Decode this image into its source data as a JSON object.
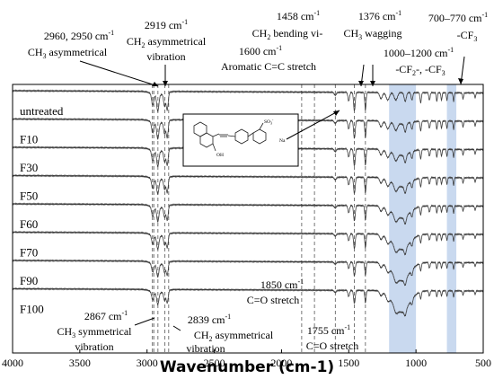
{
  "chart_data": {
    "type": "line",
    "xlabel": "Wavenumber (cm-1)",
    "ylabel": "",
    "xlim": [
      4000,
      500
    ],
    "x_reversed": true,
    "xticks": [
      4000,
      3500,
      3000,
      2500,
      2000,
      1500,
      1000,
      500
    ],
    "grid": false,
    "legend": "none",
    "series": [
      {
        "name": "untreated"
      },
      {
        "name": "F10"
      },
      {
        "name": "F30"
      },
      {
        "name": "F50"
      },
      {
        "name": "F60"
      },
      {
        "name": "F70"
      },
      {
        "name": "F90"
      },
      {
        "name": "F100"
      }
    ],
    "marked_bands": [
      {
        "x": 2960
      },
      {
        "x": 2950
      },
      {
        "x": 2919
      },
      {
        "x": 2867
      },
      {
        "x": 2839
      },
      {
        "x": 1850
      },
      {
        "x": 1755
      },
      {
        "x": 1600
      },
      {
        "x": 1458
      },
      {
        "x": 1376
      }
    ],
    "shaded_regions": [
      {
        "from": 1200,
        "to": 1000,
        "color": "#c9d9ef"
      },
      {
        "from": 770,
        "to": 700,
        "color": "#c9d9ef"
      }
    ],
    "annotations": {
      "a2960": {
        "l1": "2960, 2950 cm",
        "l1sup": "-1",
        "l2a": "CH",
        "l2sub": "3",
        "l2b": " asymmetrical"
      },
      "a2919": {
        "l1": "2919 cm",
        "l1sup": "-1",
        "l2a": "CH",
        "l2sub": "2",
        "l2b": " asymmetrical",
        "l3": "vibration"
      },
      "a1458": {
        "l1": "1458 cm",
        "l1sup": "-1",
        "l2a": "CH",
        "l2sub": "2",
        "l2b": " bending vi-"
      },
      "a1376": {
        "l1": "1376 cm",
        "l1sup": "-1",
        "l2a": "CH",
        "l2sub": "3",
        "l2b": " wagging"
      },
      "a1600": {
        "l1": "1600 cm",
        "l1sup": "-1",
        "l2": "Aromatic C=C stretch"
      },
      "a770": {
        "l1": "700–770 cm",
        "l1sup": "-1",
        "l2a": "-CF",
        "l2sub": "3"
      },
      "a1000": {
        "l1": "1000–1200 cm",
        "l1sup": "-1",
        "l2a": "-CF",
        "l2sub": "2",
        "l2b": "-, -CF",
        "l2sub2": "3"
      },
      "a1850": {
        "l1": "1850 cm",
        "l1sup": "-1",
        "l2": "C=O stretch"
      },
      "a2867": {
        "l1": "2867 cm",
        "l1sup": "-1",
        "l2a": "CH",
        "l2sub": "3",
        "l2b": " symmetrical",
        "l3": "vibration"
      },
      "a2839": {
        "l1": "2839 cm",
        "l1sup": "-1",
        "l2a": "CH",
        "l2sub": "2",
        "l2b": " asymmetrical",
        "l3": "vibration"
      },
      "a1755": {
        "l1": "1755 cm",
        "l1sup": "-1",
        "l2": "C=O stretch"
      }
    },
    "molecule": {
      "so3": "SO",
      "so3sub": "3",
      "so3sup": "-",
      "na": "Na",
      "oh": "OH"
    }
  },
  "colors": {
    "spectrum": "#3a3a3a",
    "band_line": "#555555",
    "shade": "#c9d9ef"
  }
}
